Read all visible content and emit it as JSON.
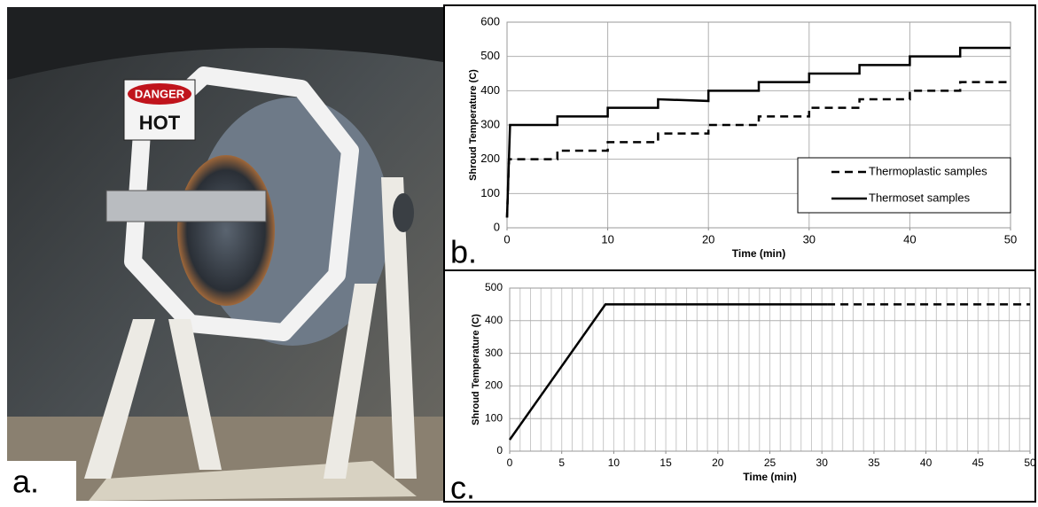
{
  "photo": {
    "label": "a.",
    "sign": [
      "DANGER",
      "HOT"
    ]
  },
  "chart_data": [
    {
      "type": "line",
      "panel_label": "b.",
      "xlabel": "Time (min)",
      "ylabel": "Shroud Temperature (C)",
      "xlim": [
        0,
        50
      ],
      "ylim": [
        0,
        600
      ],
      "xticks": [
        0,
        10,
        20,
        30,
        40,
        50
      ],
      "yticks": [
        0,
        100,
        200,
        300,
        400,
        500,
        600
      ],
      "grid": true,
      "legend": "lower right",
      "series": [
        {
          "name": "Thermoplastic samples",
          "color": "#000000",
          "line_style": "dashed",
          "x": [
            0,
            0.2,
            5,
            5,
            10,
            10,
            15,
            15,
            20,
            20,
            25,
            25,
            30,
            30,
            35,
            35,
            40,
            40,
            45,
            45,
            50
          ],
          "values": [
            30,
            200,
            200,
            225,
            225,
            250,
            250,
            275,
            275,
            300,
            300,
            325,
            325,
            350,
            350,
            375,
            375,
            400,
            400,
            425,
            425
          ]
        },
        {
          "name": "Thermoset samples",
          "color": "#000000",
          "line_style": "solid",
          "x": [
            0,
            0.3,
            5,
            5,
            10,
            10,
            15,
            15,
            20,
            20,
            25,
            25,
            30,
            30,
            35,
            35,
            40,
            40,
            45,
            45,
            50
          ],
          "values": [
            30,
            300,
            300,
            325,
            325,
            350,
            350,
            375,
            370,
            400,
            400,
            425,
            425,
            450,
            450,
            475,
            475,
            500,
            500,
            525,
            525
          ]
        }
      ]
    },
    {
      "type": "line",
      "panel_label": "c.",
      "xlabel": "Time (min)",
      "ylabel": "Shroud Temperature (C)",
      "xlim": [
        0,
        50
      ],
      "ylim": [
        0,
        500
      ],
      "xticks": [
        0,
        5,
        10,
        15,
        20,
        25,
        30,
        35,
        40,
        45,
        50
      ],
      "yticks": [
        0,
        100,
        200,
        300,
        400,
        500
      ],
      "grid": true,
      "x_minor_grid": [
        0,
        1,
        2,
        3,
        4,
        5,
        6,
        7,
        8,
        9,
        10,
        11,
        12,
        13,
        14,
        15,
        16,
        17,
        18,
        19,
        20,
        21,
        22,
        23,
        24,
        25,
        26,
        27,
        28,
        29,
        30,
        31,
        32,
        33,
        34,
        35,
        36,
        37,
        38,
        39,
        40,
        41,
        42,
        43,
        44,
        45,
        46,
        47,
        48,
        49,
        50
      ],
      "series": [
        {
          "color": "#000000",
          "line_style": "solid",
          "x": [
            0,
            9.2,
            30.5
          ],
          "values": [
            35,
            450,
            450
          ]
        },
        {
          "color": "#000000",
          "line_style": "dashed",
          "x": [
            30.5,
            50
          ],
          "values": [
            450,
            450
          ]
        }
      ]
    }
  ]
}
